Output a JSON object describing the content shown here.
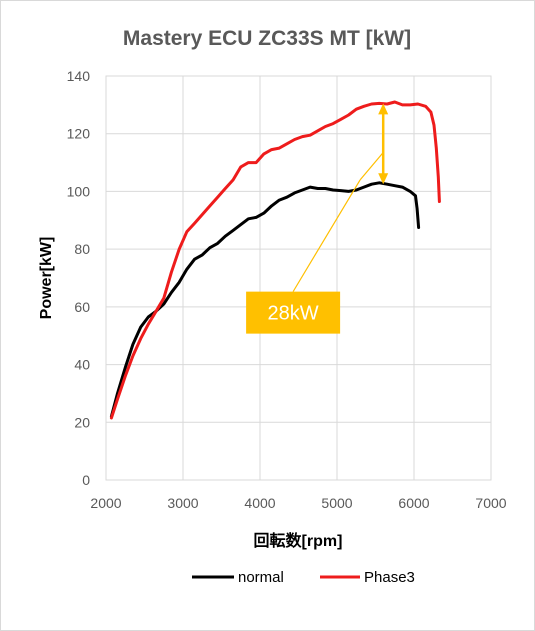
{
  "chart_data": {
    "type": "line",
    "title": "Mastery ECU ZC33S MT [kW]",
    "xlabel": "回転数[rpm]",
    "ylabel": "Power[kW]",
    "xlim": [
      2000,
      7000
    ],
    "ylim": [
      0,
      140
    ],
    "xticks": [
      2000,
      3000,
      4000,
      5000,
      6000,
      7000
    ],
    "yticks": [
      0,
      20,
      40,
      60,
      80,
      100,
      120,
      140
    ],
    "grid": true,
    "legend_position": "bottom",
    "series": [
      {
        "name": "normal",
        "color": "#000000",
        "points": [
          [
            2070,
            22
          ],
          [
            2150,
            30
          ],
          [
            2250,
            39
          ],
          [
            2350,
            47
          ],
          [
            2450,
            53
          ],
          [
            2550,
            56.5
          ],
          [
            2650,
            58.5
          ],
          [
            2750,
            61
          ],
          [
            2850,
            65
          ],
          [
            2950,
            68.5
          ],
          [
            3050,
            73
          ],
          [
            3150,
            76.5
          ],
          [
            3250,
            78
          ],
          [
            3350,
            80.5
          ],
          [
            3450,
            82
          ],
          [
            3550,
            84.5
          ],
          [
            3650,
            86.5
          ],
          [
            3750,
            88.5
          ],
          [
            3850,
            90.5
          ],
          [
            3950,
            91
          ],
          [
            4050,
            92.5
          ],
          [
            4150,
            95
          ],
          [
            4250,
            97
          ],
          [
            4350,
            98
          ],
          [
            4450,
            99.5
          ],
          [
            4550,
            100.5
          ],
          [
            4650,
            101.5
          ],
          [
            4750,
            101
          ],
          [
            4850,
            101
          ],
          [
            4950,
            100.5
          ],
          [
            5050,
            100.3
          ],
          [
            5150,
            100
          ],
          [
            5250,
            100.5
          ],
          [
            5350,
            101.5
          ],
          [
            5450,
            102.5
          ],
          [
            5550,
            103
          ],
          [
            5650,
            102.5
          ],
          [
            5750,
            102
          ],
          [
            5850,
            101.5
          ],
          [
            5950,
            100
          ],
          [
            6020,
            98.5
          ],
          [
            6040,
            94
          ],
          [
            6060,
            87.5
          ]
        ]
      },
      {
        "name": "Phase3",
        "color": "#ee1c1c",
        "points": [
          [
            2070,
            21.5
          ],
          [
            2150,
            28
          ],
          [
            2250,
            36
          ],
          [
            2350,
            43
          ],
          [
            2450,
            49
          ],
          [
            2550,
            54
          ],
          [
            2650,
            58.5
          ],
          [
            2750,
            63
          ],
          [
            2850,
            72
          ],
          [
            2950,
            80
          ],
          [
            3050,
            86
          ],
          [
            3150,
            89
          ],
          [
            3250,
            92
          ],
          [
            3350,
            95
          ],
          [
            3450,
            98
          ],
          [
            3550,
            101
          ],
          [
            3650,
            104
          ],
          [
            3750,
            108.5
          ],
          [
            3850,
            110
          ],
          [
            3950,
            110
          ],
          [
            4050,
            113
          ],
          [
            4150,
            114.5
          ],
          [
            4250,
            115
          ],
          [
            4350,
            116.5
          ],
          [
            4450,
            118
          ],
          [
            4550,
            119
          ],
          [
            4650,
            119.5
          ],
          [
            4750,
            121
          ],
          [
            4850,
            122.5
          ],
          [
            4950,
            123.5
          ],
          [
            5050,
            125
          ],
          [
            5150,
            126.5
          ],
          [
            5250,
            128.5
          ],
          [
            5350,
            129.5
          ],
          [
            5450,
            130.3
          ],
          [
            5550,
            130.5
          ],
          [
            5650,
            130.3
          ],
          [
            5750,
            131
          ],
          [
            5850,
            130
          ],
          [
            5950,
            130
          ],
          [
            6050,
            130.3
          ],
          [
            6150,
            129.5
          ],
          [
            6220,
            127.5
          ],
          [
            6260,
            123
          ],
          [
            6290,
            115
          ],
          [
            6315,
            105
          ],
          [
            6330,
            96.5
          ]
        ]
      }
    ],
    "annotation": {
      "text": "28kW",
      "color": "#ffbf00",
      "arrow_x": 5600,
      "arrow_from": 102.5,
      "arrow_to": 130.5,
      "leader": [
        [
          5300,
          104
        ],
        [
          5600,
          113.5
        ]
      ],
      "label_anchor": [
        4430,
        58
      ]
    }
  }
}
